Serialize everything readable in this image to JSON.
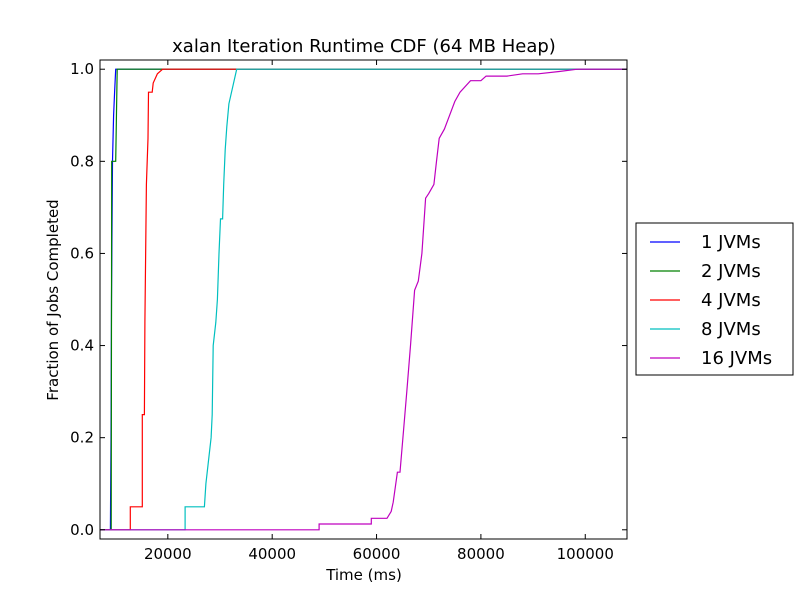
{
  "chart_data": {
    "type": "line",
    "title": "xalan Iteration Runtime CDF (64 MB Heap)",
    "xlabel": "Time (ms)",
    "ylabel": "Fraction of Jobs Completed",
    "xlim": [
      7000,
      108000
    ],
    "ylim": [
      -0.02,
      1.02
    ],
    "xticks": [
      20000,
      40000,
      60000,
      80000,
      100000
    ],
    "yticks": [
      0.0,
      0.2,
      0.4,
      0.6,
      0.8,
      1.0
    ],
    "xtick_labels": [
      "20000",
      "40000",
      "60000",
      "80000",
      "100000"
    ],
    "ytick_labels": [
      "0.0",
      "0.2",
      "0.4",
      "0.6",
      "0.8",
      "1.0"
    ],
    "grid": false,
    "legend": "outside-right",
    "series": [
      {
        "name": "1 JVMs",
        "color": "#0000ff",
        "x": [
          7000,
          9000,
          9100,
          9200,
          9400,
          9600,
          9800,
          10000,
          108000
        ],
        "y": [
          0.0,
          0.0,
          0.2,
          0.5,
          0.8,
          0.9,
          0.95,
          1.0,
          1.0
        ]
      },
      {
        "name": "2 JVMs",
        "color": "#008000",
        "x": [
          7000,
          9150,
          9250,
          9500,
          10000,
          10300,
          10500,
          108000
        ],
        "y": [
          0.0,
          0.0,
          0.8,
          0.8,
          0.8,
          1.0,
          1.0,
          1.0
        ]
      },
      {
        "name": "4 JVMs",
        "color": "#ff0000",
        "x": [
          7000,
          12800,
          12800,
          15100,
          15100,
          15500,
          15600,
          15900,
          16200,
          16300,
          17000,
          17200,
          18000,
          19000,
          108000
        ],
        "y": [
          0.0,
          0.0,
          0.05,
          0.05,
          0.25,
          0.25,
          0.45,
          0.75,
          0.85,
          0.95,
          0.95,
          0.97,
          0.99,
          1.0,
          1.0
        ]
      },
      {
        "name": "8 JVMs",
        "color": "#00bfbf",
        "x": [
          7000,
          23300,
          23300,
          27000,
          27300,
          27800,
          28300,
          28500,
          28700,
          29200,
          29500,
          29800,
          30100,
          30500,
          30700,
          31000,
          31300,
          31700,
          32200,
          32700,
          33200,
          33500,
          108000
        ],
        "y": [
          0.0,
          0.0,
          0.05,
          0.05,
          0.1,
          0.15,
          0.2,
          0.25,
          0.4,
          0.45,
          0.5,
          0.6,
          0.675,
          0.675,
          0.75,
          0.825,
          0.875,
          0.925,
          0.95,
          0.975,
          1.0,
          1.0,
          1.0
        ]
      },
      {
        "name": "16 JVMs",
        "color": "#bf00bf",
        "x": [
          7000,
          49000,
          49000,
          59000,
          59000,
          62000,
          62800,
          63200,
          64000,
          64500,
          65200,
          65800,
          66500,
          67300,
          68000,
          68700,
          69400,
          70000,
          71000,
          71500,
          72000,
          73000,
          74000,
          75000,
          76000,
          78000,
          80000,
          81000,
          85000,
          88000,
          91000,
          95000,
          98500,
          101000,
          108000
        ],
        "y": [
          0.0,
          0.0,
          0.0125,
          0.0125,
          0.025,
          0.025,
          0.04,
          0.06,
          0.125,
          0.125,
          0.22,
          0.3,
          0.4,
          0.52,
          0.54,
          0.6,
          0.72,
          0.73,
          0.75,
          0.8,
          0.85,
          0.87,
          0.9,
          0.93,
          0.95,
          0.975,
          0.975,
          0.985,
          0.985,
          0.99,
          0.99,
          0.995,
          1.0,
          1.0,
          1.0
        ]
      }
    ]
  }
}
